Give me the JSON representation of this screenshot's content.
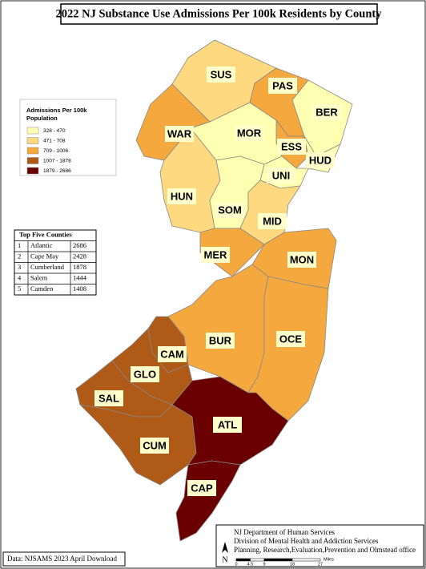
{
  "title": "2022 NJ Substance Use Admissions Per 100k Residents by County",
  "legend": {
    "title_lines": [
      "Admissions Per 100k",
      "Population"
    ],
    "classes": [
      {
        "label": "328 - 470",
        "color": "#ffffb2"
      },
      {
        "label": "471 - 708",
        "color": "#fed980"
      },
      {
        "label": "709 - 1006",
        "color": "#f5a83e"
      },
      {
        "label": "1007 - 1878",
        "color": "#b05a18"
      },
      {
        "label": "1879 - 2686",
        "color": "#6b0000"
      }
    ]
  },
  "counties": [
    {
      "code": "SUS",
      "color": "#fed980"
    },
    {
      "code": "PAS",
      "color": "#f5a83e"
    },
    {
      "code": "BER",
      "color": "#ffffb2"
    },
    {
      "code": "WAR",
      "color": "#f5a83e"
    },
    {
      "code": "MOR",
      "color": "#ffffb2"
    },
    {
      "code": "ESS",
      "color": "#f5a83e"
    },
    {
      "code": "HUD",
      "color": "#ffffb2"
    },
    {
      "code": "UNI",
      "color": "#ffffb2"
    },
    {
      "code": "HUN",
      "color": "#fed980"
    },
    {
      "code": "SOM",
      "color": "#ffffb2"
    },
    {
      "code": "MID",
      "color": "#fed980"
    },
    {
      "code": "MER",
      "color": "#f5a83e"
    },
    {
      "code": "MON",
      "color": "#f5a83e"
    },
    {
      "code": "BUR",
      "color": "#f5a83e"
    },
    {
      "code": "OCE",
      "color": "#f5a83e"
    },
    {
      "code": "CAM",
      "color": "#b05a18"
    },
    {
      "code": "GLO",
      "color": "#b05a18"
    },
    {
      "code": "SAL",
      "color": "#b05a18"
    },
    {
      "code": "CUM",
      "color": "#b05a18"
    },
    {
      "code": "ATL",
      "color": "#6b0000"
    },
    {
      "code": "CAP",
      "color": "#6b0000"
    }
  ],
  "top_five": {
    "title": "Top Five Counties",
    "rows": [
      [
        "1",
        "Atlantic",
        "2686"
      ],
      [
        "2",
        "Cape May",
        "2428"
      ],
      [
        "3",
        "Cumberland",
        "1878"
      ],
      [
        "4",
        "Salem",
        "1444"
      ],
      [
        "5",
        "Camden",
        "1408"
      ]
    ]
  },
  "source": "Data: NJSAMS 2023 April Download",
  "agency_lines": [
    "NJ Department of Human Services",
    "Division of Mental Health and Addiction Services",
    "Planning, Research,Evaluation,Prevention and Olmstead office"
  ],
  "scale": {
    "ticks": [
      0,
      4.5,
      9,
      18,
      27
    ],
    "unit": "Miles"
  },
  "north": "N"
}
